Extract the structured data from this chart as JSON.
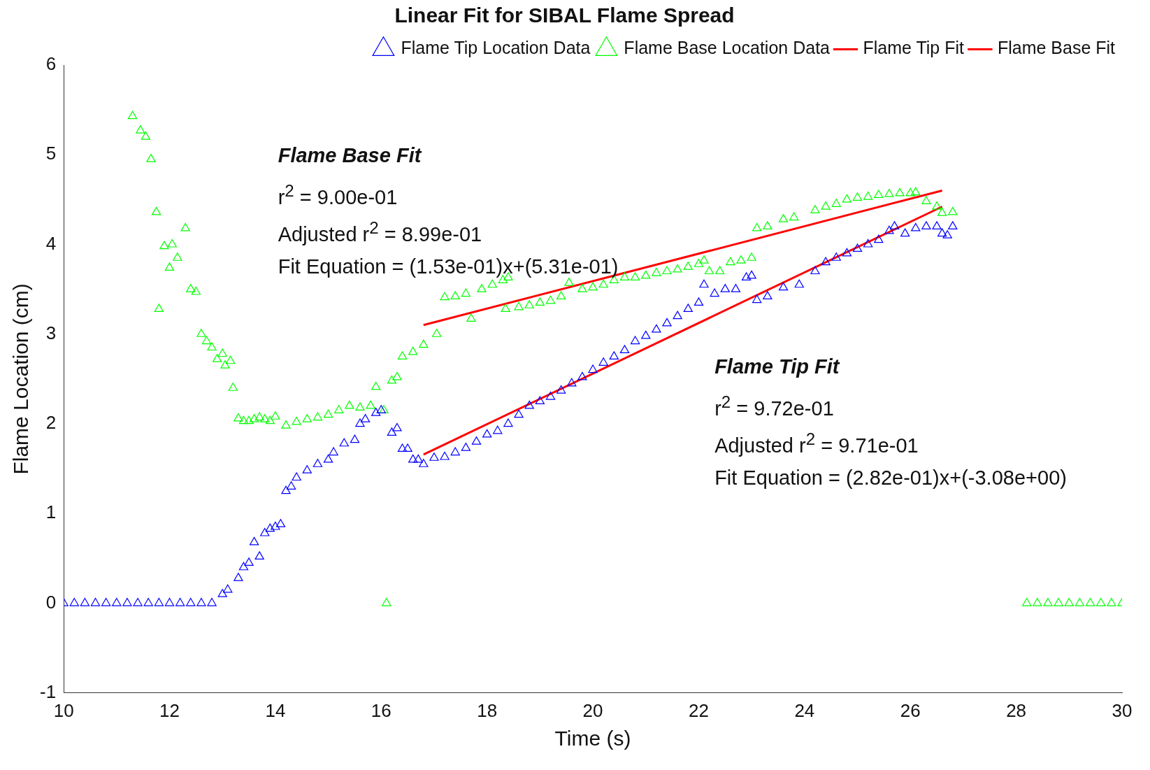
{
  "chart_data": {
    "type": "scatter",
    "title": "Linear Fit for SIBAL Flame Spread",
    "xlabel": "Time (s)",
    "ylabel": "Flame Location (cm)",
    "xlim": [
      10,
      30
    ],
    "xticks": [
      10,
      12,
      14,
      16,
      18,
      20,
      22,
      24,
      26,
      28,
      30
    ],
    "ylim": [
      -1,
      6
    ],
    "yticks": [
      -1,
      0,
      1,
      2,
      3,
      4,
      5,
      6
    ],
    "grid": false,
    "legend": "top right",
    "marker": "triangle",
    "annotations": [
      "Flame Base Fit",
      "r$^{2}$  =  9.00e-01",
      "Adjusted  r$^{2}$  =  8.99e-01",
      "Fit Equation = (1.53e-01)x+(5.31e-01)",
      "Flame Tip Fit",
      "r$^{2}$  =  9.72e-01",
      "Adjusted  r$^{2}$  =  9.71e-01",
      "Fit Equation = (2.82e-01)x+(-3.08e+00)"
    ],
    "series": [
      {
        "name": "Flame Tip Location Data",
        "color": "#0000ff",
        "x": [
          10,
          10.2,
          10.4,
          10.6,
          10.8,
          11,
          11.2,
          11.4,
          11.6,
          11.8,
          12,
          12.2,
          12.4,
          12.6,
          12.8,
          13,
          13.1,
          13.3,
          13.4,
          13.5,
          13.6,
          13.7,
          13.8,
          13.9,
          14,
          14.1,
          14.2,
          14.3,
          14.4,
          14.6,
          14.8,
          15,
          15.1,
          15.3,
          15.5,
          15.6,
          15.7,
          15.9,
          16,
          16.2,
          16.3,
          16.4,
          16.5,
          16.6,
          16.7,
          16.8,
          17,
          17.2,
          17.4,
          17.6,
          17.8,
          18,
          18.2,
          18.4,
          18.6,
          18.8,
          19,
          19.2,
          19.4,
          19.6,
          19.8,
          20,
          20.2,
          20.4,
          20.6,
          20.8,
          21,
          21.2,
          21.4,
          21.6,
          21.8,
          22,
          22.1,
          22.3,
          22.5,
          22.7,
          22.9,
          23,
          23.1,
          23.3,
          23.6,
          23.9,
          24.2,
          24.4,
          24.6,
          24.8,
          25,
          25.2,
          25.4,
          25.6,
          25.7,
          25.9,
          26.1,
          26.3,
          26.5,
          26.6,
          26.7,
          26.8
        ],
        "values": [
          0,
          0,
          0,
          0,
          0,
          0,
          0,
          0,
          0,
          0,
          0,
          0,
          0,
          0,
          0,
          0.1,
          0.15,
          0.28,
          0.4,
          0.45,
          0.68,
          0.52,
          0.78,
          0.83,
          0.85,
          0.88,
          1.25,
          1.3,
          1.4,
          1.48,
          1.55,
          1.6,
          1.68,
          1.78,
          1.82,
          2,
          2.05,
          2.12,
          2.15,
          1.9,
          1.95,
          1.72,
          1.72,
          1.6,
          1.6,
          1.55,
          1.62,
          1.63,
          1.68,
          1.73,
          1.8,
          1.88,
          1.92,
          2,
          2.1,
          2.2,
          2.25,
          2.3,
          2.37,
          2.45,
          2.52,
          2.6,
          2.68,
          2.75,
          2.82,
          2.92,
          2.98,
          3.05,
          3.12,
          3.2,
          3.28,
          3.35,
          3.55,
          3.45,
          3.5,
          3.5,
          3.63,
          3.65,
          3.38,
          3.42,
          3.52,
          3.55,
          3.7,
          3.8,
          3.85,
          3.9,
          3.95,
          4,
          4.05,
          4.15,
          4.2,
          4.12,
          4.18,
          4.2,
          4.2,
          4.12,
          4.1,
          4.2
        ]
      },
      {
        "name": "Flame Base Location Data",
        "color": "#00ff00",
        "x": [
          11.3,
          11.45,
          11.55,
          11.65,
          11.75,
          11.8,
          11.9,
          12,
          12.05,
          12.15,
          12.3,
          12.4,
          12.5,
          12.6,
          12.7,
          12.8,
          12.9,
          13,
          13.05,
          13.15,
          13.2,
          13.3,
          13.4,
          13.5,
          13.6,
          13.7,
          13.8,
          13.9,
          14,
          14.2,
          14.4,
          14.6,
          14.8,
          15,
          15.2,
          15.4,
          15.6,
          15.8,
          15.9,
          16.05,
          16.1,
          16.2,
          16.3,
          16.4,
          16.6,
          16.8,
          17.05,
          17.2,
          17.4,
          17.6,
          17.7,
          17.9,
          18.1,
          18.3,
          18.35,
          18.4,
          18.6,
          18.8,
          19,
          19.2,
          19.4,
          19.55,
          19.8,
          20,
          20.2,
          20.4,
          20.6,
          20.8,
          21,
          21.2,
          21.4,
          21.6,
          21.8,
          22,
          22.1,
          22.2,
          22.4,
          22.6,
          22.8,
          23,
          23.1,
          23.3,
          23.6,
          23.8,
          24.2,
          24.4,
          24.6,
          24.8,
          25,
          25.2,
          25.4,
          25.6,
          25.8,
          26,
          26.1,
          26.3,
          26.5,
          26.6,
          26.8,
          28.2,
          28.4,
          28.6,
          28.8,
          29,
          29.2,
          29.4,
          29.6,
          29.8,
          30
        ],
        "values": [
          5.43,
          5.27,
          5.2,
          4.95,
          4.36,
          3.28,
          3.98,
          3.74,
          4,
          3.85,
          4.18,
          3.5,
          3.47,
          3,
          2.92,
          2.85,
          2.72,
          2.78,
          2.65,
          2.7,
          2.4,
          2.06,
          2.03,
          2.03,
          2.05,
          2.07,
          2.05,
          2.03,
          2.08,
          1.98,
          2.02,
          2.05,
          2.07,
          2.1,
          2.15,
          2.2,
          2.18,
          2.2,
          2.41,
          2.15,
          0,
          2.48,
          2.52,
          2.75,
          2.8,
          2.88,
          3,
          3.41,
          3.42,
          3.45,
          3.17,
          3.5,
          3.55,
          3.6,
          3.28,
          3.63,
          3.3,
          3.32,
          3.35,
          3.37,
          3.42,
          3.57,
          3.5,
          3.52,
          3.55,
          3.6,
          3.63,
          3.63,
          3.65,
          3.68,
          3.7,
          3.72,
          3.75,
          3.78,
          3.82,
          3.7,
          3.7,
          3.8,
          3.82,
          3.85,
          4.18,
          4.2,
          4.28,
          4.3,
          4.38,
          4.42,
          4.45,
          4.5,
          4.52,
          4.53,
          4.55,
          4.56,
          4.57,
          4.57,
          4.58,
          4.48,
          4.42,
          4.35,
          4.36,
          0,
          0,
          0,
          0,
          0,
          0,
          0,
          0,
          0,
          0
        ]
      },
      {
        "name": "Flame Tip Fit",
        "type": "line",
        "marker": "none",
        "color": "#ff0000",
        "x": [
          16.8,
          26.6
        ],
        "values": [
          1.658,
          4.421
        ]
      },
      {
        "name": "Flame Base Fit",
        "type": "line",
        "marker": "none",
        "color": "#ff0000",
        "x": [
          16.8,
          26.6
        ],
        "values": [
          3.101,
          4.601
        ]
      }
    ]
  }
}
